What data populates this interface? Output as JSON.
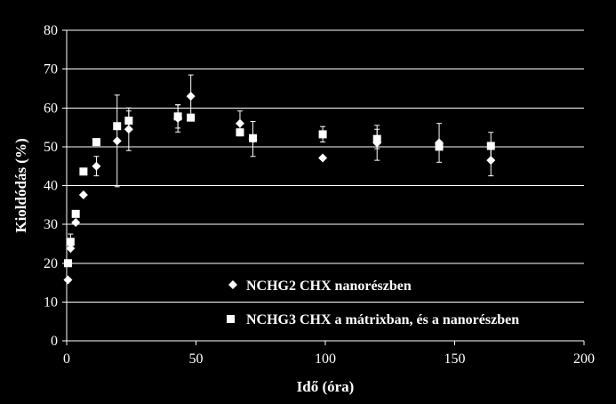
{
  "chart_data": {
    "type": "scatter",
    "xlabel": "Idő (óra)",
    "ylabel": "Kioldódás (%)",
    "xlim": [
      0,
      200
    ],
    "ylim": [
      0,
      80
    ],
    "xticks": [
      "0",
      "50",
      "100",
      "150",
      "200"
    ],
    "yticks": [
      "0",
      "10",
      "20",
      "30",
      "40",
      "50",
      "60",
      "70",
      "80"
    ],
    "grid": "horizontal",
    "legend_position": "bottom-right inside",
    "background": "#000000",
    "foreground": "#ffffff",
    "series": [
      {
        "name": "NCHG2 CHX nanorészben",
        "marker": "diamond",
        "points": [
          {
            "x": 0.5,
            "y": 15.7,
            "err": 0
          },
          {
            "x": 1.5,
            "y": 23.8,
            "err": 0
          },
          {
            "x": 3.5,
            "y": 30.5,
            "err": 0
          },
          {
            "x": 6.5,
            "y": 37.6,
            "err": 0
          },
          {
            "x": 11.5,
            "y": 45.0,
            "err": 2.5
          },
          {
            "x": 19.5,
            "y": 51.5,
            "err": 11.8
          },
          {
            "x": 24,
            "y": 54.5,
            "err": 5.5
          },
          {
            "x": 43,
            "y": 57.3,
            "err": 3.5
          },
          {
            "x": 48,
            "y": 63.0,
            "err": 5.5
          },
          {
            "x": 67,
            "y": 56.0,
            "err": 3.2
          },
          {
            "x": 72,
            "y": 52.0,
            "err": 4.5
          },
          {
            "x": 99,
            "y": 47.1,
            "err": 0
          },
          {
            "x": 120,
            "y": 51.0,
            "err": 4.5
          },
          {
            "x": 144,
            "y": 51.0,
            "err": 5.0
          },
          {
            "x": 164,
            "y": 46.5,
            "err": 4.0
          }
        ]
      },
      {
        "name": "NCHG3 CHX a mátrixban, és a nanorészben",
        "marker": "square",
        "points": [
          {
            "x": 0.5,
            "y": 20.0,
            "err": 0
          },
          {
            "x": 1.5,
            "y": 25.5,
            "err": 2.0
          },
          {
            "x": 3.5,
            "y": 32.7,
            "err": 0
          },
          {
            "x": 6.5,
            "y": 43.6,
            "err": 0
          },
          {
            "x": 11.5,
            "y": 51.2,
            "err": 0
          },
          {
            "x": 19.5,
            "y": 55.3,
            "err": 0
          },
          {
            "x": 24,
            "y": 56.7,
            "err": 2.5
          },
          {
            "x": 43,
            "y": 57.8,
            "err": 3.0
          },
          {
            "x": 48,
            "y": 57.5,
            "err": 0
          },
          {
            "x": 67,
            "y": 53.7,
            "err": 0
          },
          {
            "x": 72,
            "y": 52.2,
            "err": 0
          },
          {
            "x": 99,
            "y": 53.2,
            "err": 2.0
          },
          {
            "x": 120,
            "y": 52.0,
            "err": 2.5
          },
          {
            "x": 144,
            "y": 50.0,
            "err": 0
          },
          {
            "x": 164,
            "y": 50.2,
            "err": 3.5
          }
        ]
      }
    ]
  }
}
